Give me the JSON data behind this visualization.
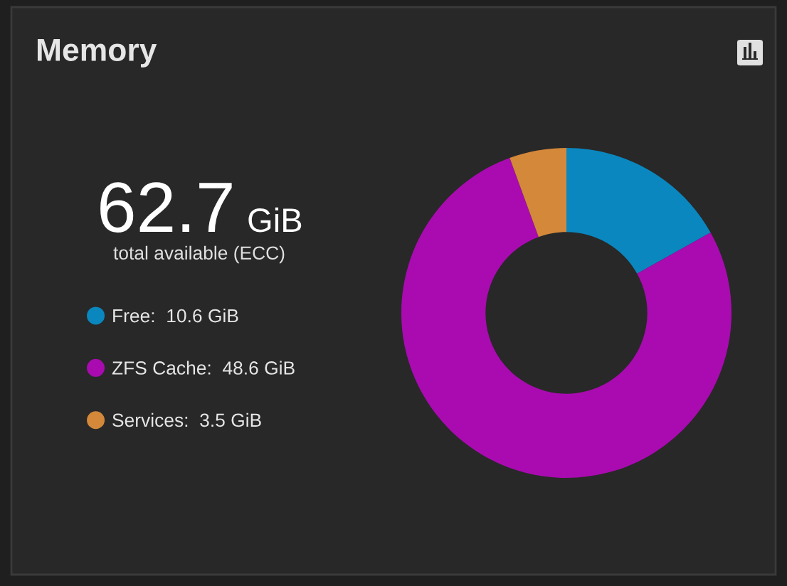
{
  "chart_data": {
    "type": "donut",
    "title": "Memory",
    "annotations": [
      "62.7 GiB",
      "total available (ECC)"
    ],
    "categories": [
      "Free",
      "ZFS Cache",
      "Services"
    ],
    "values": [
      10.6,
      48.6,
      3.5
    ],
    "value_labels": [
      "10.6 GiB",
      "48.6 GiB",
      "3.5 GiB"
    ],
    "colors": [
      "#0a87bf",
      "#a90bb0",
      "#d4883a"
    ],
    "legend": "left"
  }
}
